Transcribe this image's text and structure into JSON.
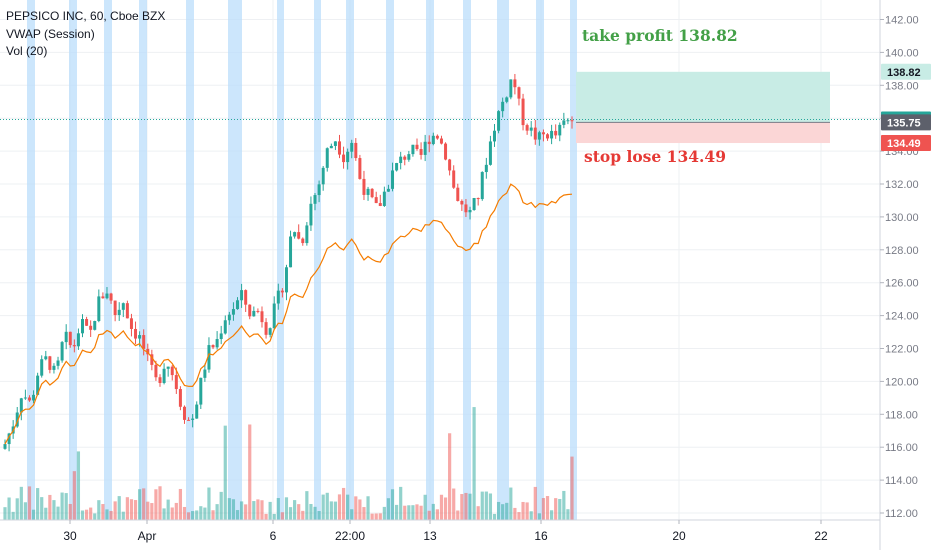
{
  "legend": {
    "symbol_line": "PEPSICO INC, 60, Cboe BZX",
    "vwap": "VWAP (Session)",
    "vol": "Vol (20)"
  },
  "annotations": {
    "take_profit": "take profit 138.82",
    "stop_loss": "stop lose 134.49"
  },
  "price_labels": {
    "take_profit": "138.82",
    "current": "135.92",
    "entry": "135.75",
    "stop": "134.49"
  },
  "colors": {
    "up": "#26a69a",
    "down": "#ef5350",
    "vwap": "#f57c00",
    "session_band": "#bbdefb",
    "profit_zone": "#c8ece5",
    "loss_zone": "#fbd6d6",
    "take_profit_text": "#43a047",
    "stop_text": "#e53935",
    "current_price": "#26a69a"
  },
  "chart_data": {
    "type": "candlestick",
    "y_ticks": [
      "142.00",
      "140.00",
      "138.00",
      "136.00",
      "134.00",
      "132.00",
      "130.00",
      "128.00",
      "126.00",
      "124.00",
      "122.00",
      "120.00",
      "118.00",
      "116.00",
      "114.00",
      "112.00"
    ],
    "x_ticks": [
      "30",
      "Apr",
      "6",
      "22:00",
      "13",
      "16",
      "20",
      "22"
    ],
    "ylim": [
      111,
      142.5
    ],
    "current_price": 135.92,
    "entry_price": 135.75,
    "take_profit": 138.82,
    "stop_loss": 134.49,
    "close_path": [
      116.2,
      117.5,
      119.4,
      118.6,
      120.8,
      121.4,
      120.3,
      122.8,
      121.9,
      123.6,
      122.7,
      124.8,
      125.6,
      124.1,
      124.9,
      123.2,
      122.6,
      121.0,
      119.8,
      121.4,
      120.2,
      118.2,
      117.4,
      119.6,
      121.8,
      122.4,
      123.9,
      124.5,
      125.2,
      124.1,
      124.3,
      123.1,
      124.6,
      126.2,
      129.5,
      128.3,
      130.6,
      131.8,
      133.9,
      134.8,
      133.7,
      134.6,
      132.2,
      131.2,
      130.4,
      131.7,
      132.9,
      133.6,
      134.1,
      133.5,
      134.8,
      135.1,
      134.0,
      131.8,
      130.6,
      130.2,
      131.4,
      133.8,
      135.9,
      137.2,
      138.6,
      136.1,
      135.3,
      134.7,
      135.1,
      134.9,
      135.6,
      135.92
    ]
  }
}
